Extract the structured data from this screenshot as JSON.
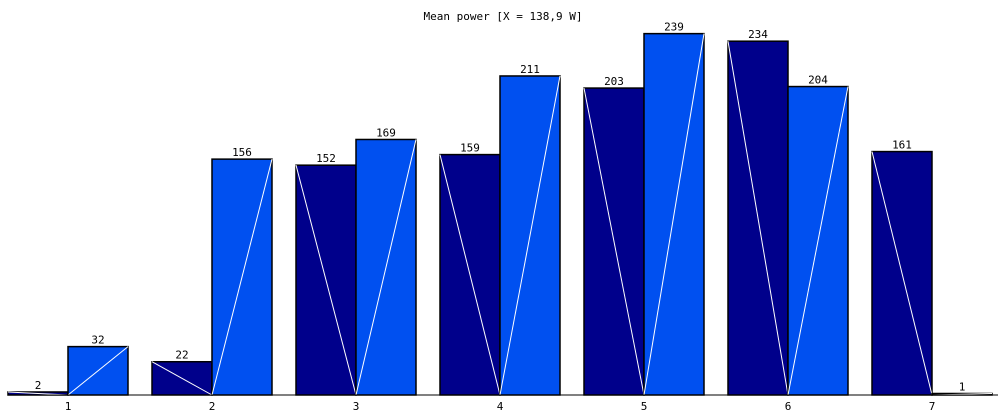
{
  "chart_data": {
    "type": "bar",
    "title": "Mean power [X = 138,9 W]",
    "categories": [
      "1",
      "2",
      "3",
      "4",
      "5",
      "6",
      "7"
    ],
    "series": [
      {
        "values": [
          2,
          22,
          152,
          159,
          203,
          234,
          161
        ]
      },
      {
        "values": [
          32,
          156,
          169,
          211,
          239,
          204,
          1
        ]
      }
    ],
    "ylim": [
      0,
      250
    ],
    "grid": false,
    "legend": "none",
    "colors": {
      "series1": "#00008b",
      "series2": "#0050f0",
      "stroke": "#000000",
      "diagonal": "#ffffff"
    }
  }
}
